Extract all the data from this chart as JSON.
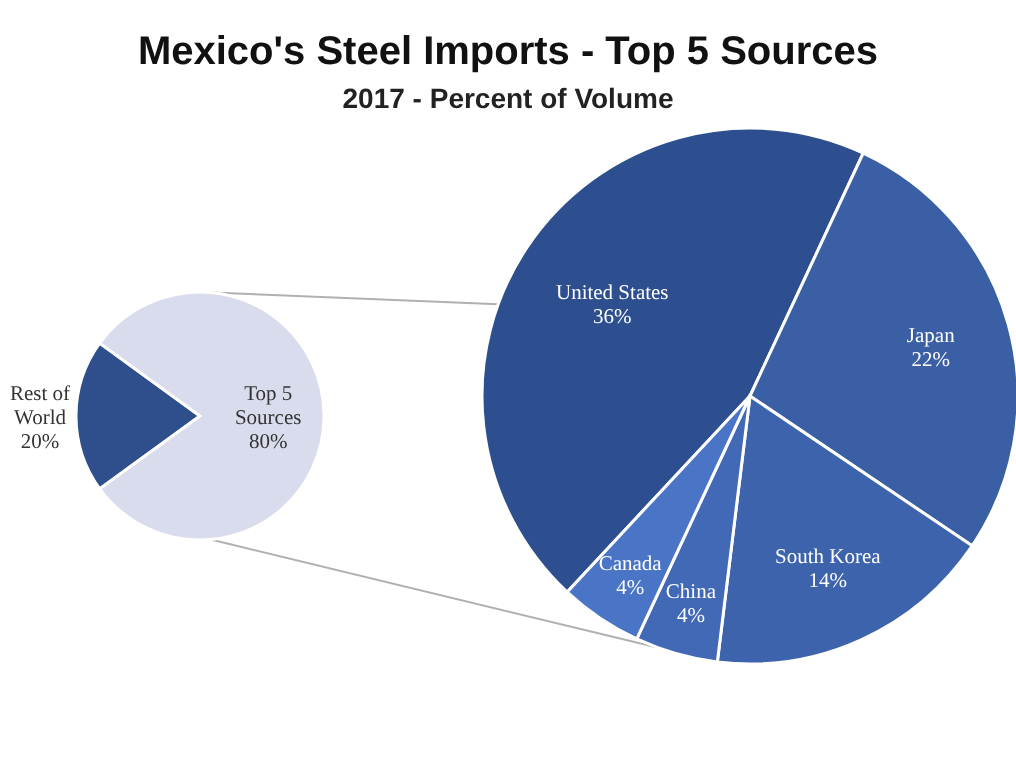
{
  "chart_data": [
    {
      "type": "pie",
      "title": "Mexico's Steel Imports - Top 5 Sources",
      "categories": [
        "Rest of World",
        "Top 5 Sources"
      ],
      "values": [
        20,
        80
      ],
      "colors": [
        "#2f4e8c",
        "#d9dced"
      ],
      "value_labels": [
        "20%",
        "80%"
      ]
    },
    {
      "type": "pie",
      "subtitle": "2017 - Percent of Volume",
      "categories": [
        "United States",
        "Japan",
        "South Korea",
        "China",
        "Canada"
      ],
      "values": [
        36,
        22,
        14,
        4,
        4
      ],
      "colors": [
        "#2e4f8f",
        "#3a5fa5",
        "#3c63ab",
        "#4269b6",
        "#4a74c6"
      ],
      "value_labels": [
        "36%",
        "22%",
        "14%",
        "4%",
        "4%"
      ]
    }
  ]
}
